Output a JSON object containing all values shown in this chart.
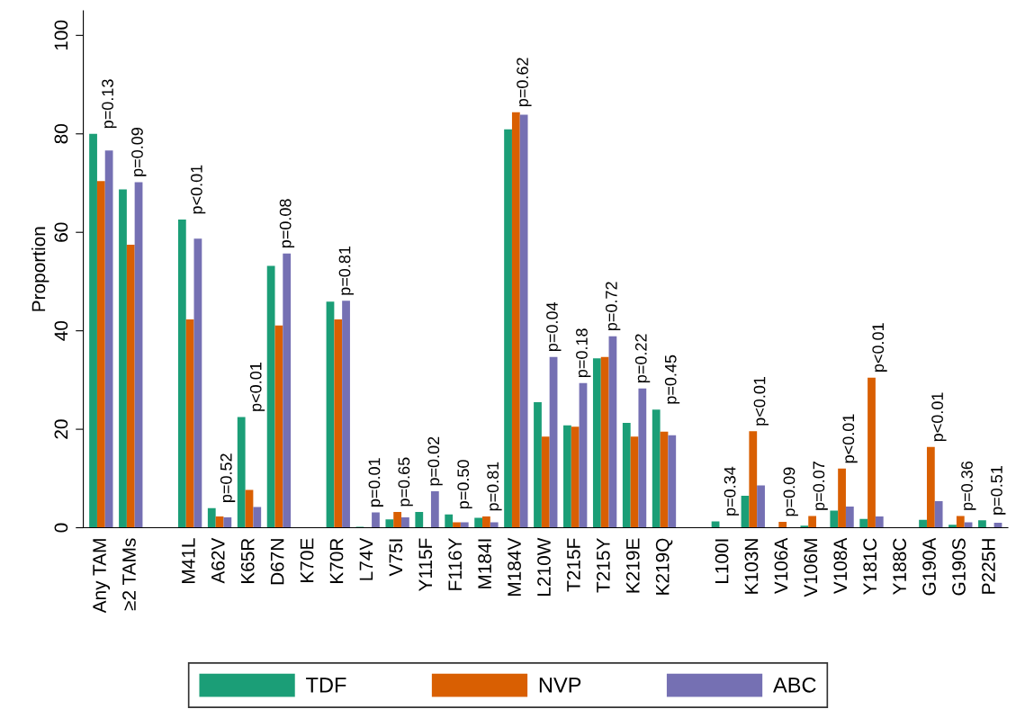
{
  "chart_data": {
    "type": "bar",
    "ylabel": "Proportion",
    "categories": [
      "Any TAM",
      "≥2 TAMs",
      null,
      "M41L",
      "A62V",
      "K65R",
      "D67N",
      "K70E",
      "K70R",
      "L74V",
      "V75I",
      "Y115F",
      "F116Y",
      "M184I",
      "M184V",
      "L210W",
      "T215F",
      "T215Y",
      "K219E",
      "K219Q",
      null,
      "L100I",
      "K103N",
      "V106A",
      "V106M",
      "V108A",
      "Y181C",
      "Y188C",
      "G190A",
      "G190S",
      "P225H"
    ],
    "series": [
      {
        "name": "TDF",
        "color": "#1b9e77",
        "values": [
          80.0,
          68.7,
          null,
          62.6,
          4.0,
          22.5,
          53.2,
          null,
          45.9,
          0.2,
          1.7,
          3.2,
          2.7,
          2.0,
          80.9,
          25.5,
          20.8,
          34.4,
          21.3,
          24.0,
          null,
          1.3,
          6.5,
          null,
          0.4,
          3.5,
          1.8,
          null,
          1.6,
          0.6,
          1.5
        ]
      },
      {
        "name": "NVP",
        "color": "#d95f02",
        "values": [
          70.4,
          57.5,
          null,
          42.3,
          2.3,
          7.7,
          41.1,
          null,
          42.3,
          null,
          3.2,
          null,
          1.1,
          2.3,
          84.4,
          18.5,
          20.5,
          34.7,
          18.5,
          19.5,
          null,
          null,
          19.6,
          1.2,
          2.4,
          12.0,
          30.5,
          null,
          16.4,
          2.4,
          null
        ]
      },
      {
        "name": "ABC",
        "color": "#7570b3",
        "values": [
          76.6,
          70.2,
          null,
          58.7,
          2.1,
          4.2,
          55.7,
          null,
          46.1,
          3.1,
          2.1,
          7.4,
          1.1,
          1.1,
          83.9,
          34.7,
          29.4,
          38.9,
          28.3,
          18.8,
          null,
          null,
          8.6,
          null,
          null,
          4.3,
          2.3,
          null,
          5.4,
          1.1,
          1.0
        ]
      }
    ],
    "ylim": [
      0,
      105
    ],
    "yticks": [
      0,
      20,
      40,
      60,
      80,
      100
    ],
    "grid": false,
    "legend": "bottom",
    "annotations": [
      "p=0.13",
      "p=0.09",
      "p<0.01",
      "p=0.52",
      "p<0.01",
      "p=0.08",
      "p=0.81",
      "p=0.01",
      "p=0.65",
      "p=0.02",
      "p=0.50",
      "p=0.81",
      "p=0.62",
      "p=0.04",
      "p=0.18",
      "p=0.72",
      "p=0.22",
      "p=0.45",
      "p=0.34",
      "p<0.01",
      "p=0.09",
      "p=0.07",
      "p<0.01",
      "p<0.01",
      "p<0.01",
      "p=0.36",
      "p=0.51"
    ]
  }
}
